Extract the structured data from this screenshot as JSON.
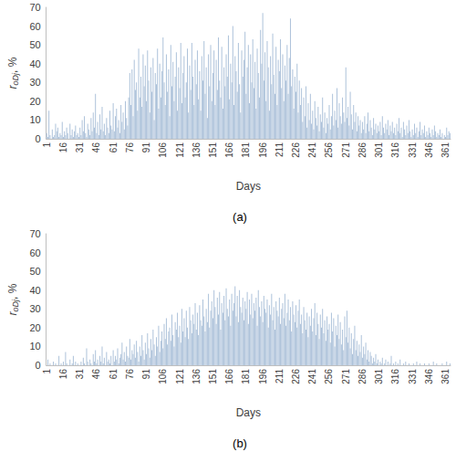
{
  "chart_data": [
    {
      "type": "bar",
      "title": "(a)",
      "xlabel": "Days",
      "ylabel": "roDj, %",
      "color": "#adc2da",
      "grid": false,
      "ylim": [
        0,
        70
      ],
      "yticks": [
        0,
        10,
        20,
        30,
        40,
        50,
        60,
        70
      ],
      "categories": [
        "1",
        null,
        null,
        null,
        null,
        null,
        null,
        null,
        null,
        null,
        null,
        null,
        null,
        null,
        null,
        "16",
        null,
        null,
        null,
        null,
        null,
        null,
        null,
        null,
        null,
        null,
        null,
        null,
        null,
        null,
        "31",
        null,
        null,
        null,
        null,
        null,
        null,
        null,
        null,
        null,
        null,
        null,
        null,
        null,
        null,
        "46",
        null,
        null,
        null,
        null,
        null,
        null,
        null,
        null,
        null,
        null,
        null,
        null,
        null,
        null,
        "61",
        null,
        null,
        null,
        null,
        null,
        null,
        null,
        null,
        null,
        null,
        null,
        null,
        null,
        null,
        "76",
        null,
        null,
        null,
        null,
        null,
        null,
        null,
        null,
        null,
        null,
        null,
        null,
        null,
        null,
        "91",
        null,
        null,
        null,
        null,
        null,
        null,
        null,
        null,
        null,
        null,
        null,
        null,
        null,
        null,
        "106",
        null,
        null,
        null,
        null,
        null,
        null,
        null,
        null,
        null,
        null,
        null,
        null,
        null,
        null,
        "121",
        null,
        null,
        null,
        null,
        null,
        null,
        null,
        null,
        null,
        null,
        null,
        null,
        null,
        null,
        "136",
        null,
        null,
        null,
        null,
        null,
        null,
        null,
        null,
        null,
        null,
        null,
        null,
        null,
        null,
        "151",
        null,
        null,
        null,
        null,
        null,
        null,
        null,
        null,
        null,
        null,
        null,
        null,
        null,
        null,
        "166",
        null,
        null,
        null,
        null,
        null,
        null,
        null,
        null,
        null,
        null,
        null,
        null,
        null,
        null,
        "181",
        null,
        null,
        null,
        null,
        null,
        null,
        null,
        null,
        null,
        null,
        null,
        null,
        null,
        null,
        "196",
        null,
        null,
        null,
        null,
        null,
        null,
        null,
        null,
        null,
        null,
        null,
        null,
        null,
        null,
        "211",
        null,
        null,
        null,
        null,
        null,
        null,
        null,
        null,
        null,
        null,
        null,
        null,
        null,
        null,
        "226",
        null,
        null,
        null,
        null,
        null,
        null,
        null,
        null,
        null,
        null,
        null,
        null,
        null,
        null,
        "241",
        null,
        null,
        null,
        null,
        null,
        null,
        null,
        null,
        null,
        null,
        null,
        null,
        null,
        null,
        "256",
        null,
        null,
        null,
        null,
        null,
        null,
        null,
        null,
        null,
        null,
        null,
        null,
        null,
        null,
        "271",
        null,
        null,
        null,
        null,
        null,
        null,
        null,
        null,
        null,
        null,
        null,
        null,
        null,
        null,
        "286",
        null,
        null,
        null,
        null,
        null,
        null,
        null,
        null,
        null,
        null,
        null,
        null,
        null,
        null,
        "301",
        null,
        null,
        null,
        null,
        null,
        null,
        null,
        null,
        null,
        null,
        null,
        null,
        null,
        null,
        "316",
        null,
        null,
        null,
        null,
        null,
        null,
        null,
        null,
        null,
        null,
        null,
        null,
        null,
        null,
        "331",
        null,
        null,
        null,
        null,
        null,
        null,
        null,
        null,
        null,
        null,
        null,
        null,
        null,
        null,
        "346",
        null,
        null,
        null,
        null,
        null,
        null,
        null,
        null,
        null,
        null,
        null,
        null,
        null,
        null,
        "361",
        null,
        null,
        null,
        null
      ],
      "values": [
        3,
        1,
        15,
        2,
        0,
        5,
        1,
        2,
        8,
        4,
        6,
        1,
        3,
        2,
        9,
        1,
        4,
        2,
        6,
        3,
        0,
        8,
        2,
        5,
        1,
        4,
        7,
        2,
        3,
        1,
        6,
        2,
        10,
        4,
        12,
        3,
        1,
        8,
        5,
        2,
        11,
        4,
        14,
        6,
        24,
        3,
        9,
        2,
        13,
        5,
        17,
        4,
        8,
        2,
        11,
        6,
        3,
        15,
        7,
        5,
        19,
        4,
        12,
        16,
        6,
        10,
        3,
        18,
        9,
        14,
        5,
        20,
        11,
        7,
        22,
        35,
        18,
        37,
        12,
        42,
        26,
        30,
        15,
        48,
        22,
        33,
        17,
        45,
        28,
        39,
        20,
        47,
        31,
        14,
        38,
        25,
        43,
        10,
        35,
        29,
        48,
        16,
        40,
        22,
        36,
        54,
        30,
        18,
        45,
        25,
        37,
        12,
        50,
        28,
        41,
        20,
        33,
        46,
        15,
        38,
        27,
        51,
        19,
        35,
        44,
        22,
        30,
        48,
        14,
        39,
        26,
        51,
        33,
        18,
        42,
        29,
        47,
        21,
        36,
        15,
        44,
        31,
        52,
        24,
        38,
        11,
        45,
        28,
        50,
        20,
        35,
        47,
        18,
        42,
        26,
        54,
        31,
        22,
        49,
        16,
        38,
        28,
        45,
        33,
        55,
        21,
        40,
        30,
        60,
        18,
        44,
        36,
        25,
        51,
        29,
        14,
        47,
        33,
        42,
        57,
        24,
        38,
        50,
        19,
        45,
        30,
        53,
        27,
        41,
        16,
        48,
        35,
        22,
        58,
        40,
        67,
        31,
        46,
        20,
        52,
        38,
        15,
        44,
        29,
        56,
        34,
        24,
        49,
        18,
        42,
        36,
        53,
        27,
        45,
        20,
        39,
        31,
        50,
        24,
        43,
        64,
        28,
        37,
        16,
        33,
        25,
        40,
        14,
        31,
        18,
        27,
        9,
        22,
        12,
        28,
        6,
        19,
        10,
        24,
        8,
        15,
        5,
        20,
        11,
        7,
        17,
        4,
        13,
        9,
        22,
        6,
        14,
        3,
        11,
        8,
        18,
        5,
        12,
        24,
        7,
        15,
        10,
        27,
        6,
        19,
        12,
        8,
        22,
        14,
        9,
        38,
        11,
        17,
        7,
        25,
        13,
        5,
        18,
        9,
        14,
        4,
        12,
        7,
        10,
        3,
        9,
        5,
        12,
        3,
        8,
        14,
        4,
        10,
        6,
        2,
        11,
        5,
        8,
        3,
        7,
        4,
        9,
        2,
        12,
        6,
        3,
        8,
        5,
        10,
        2,
        7,
        4,
        9,
        3,
        6,
        2,
        8,
        4,
        11,
        3,
        6,
        1,
        9,
        5,
        2,
        7,
        3,
        10,
        4,
        1,
        5,
        2,
        8,
        3,
        6,
        1,
        4,
        9,
        2,
        5,
        3,
        7,
        1,
        4,
        2,
        6,
        3,
        1,
        5,
        2,
        7,
        4,
        1,
        3,
        2,
        5,
        1,
        3,
        0,
        2,
        1,
        6,
        2,
        4,
        3
      ]
    },
    {
      "type": "bar",
      "title": "(b)",
      "xlabel": "Days",
      "ylabel": "roDj, %",
      "color": "#adc2da",
      "grid": false,
      "ylim": [
        0,
        70
      ],
      "yticks": [
        0,
        10,
        20,
        30,
        40,
        50,
        60,
        70
      ],
      "categories": [
        "1",
        null,
        null,
        null,
        null,
        null,
        null,
        null,
        null,
        null,
        null,
        null,
        null,
        null,
        null,
        "16",
        null,
        null,
        null,
        null,
        null,
        null,
        null,
        null,
        null,
        null,
        null,
        null,
        null,
        null,
        "31",
        null,
        null,
        null,
        null,
        null,
        null,
        null,
        null,
        null,
        null,
        null,
        null,
        null,
        null,
        "46",
        null,
        null,
        null,
        null,
        null,
        null,
        null,
        null,
        null,
        null,
        null,
        null,
        null,
        null,
        "61",
        null,
        null,
        null,
        null,
        null,
        null,
        null,
        null,
        null,
        null,
        null,
        null,
        null,
        null,
        "76",
        null,
        null,
        null,
        null,
        null,
        null,
        null,
        null,
        null,
        null,
        null,
        null,
        null,
        null,
        "91",
        null,
        null,
        null,
        null,
        null,
        null,
        null,
        null,
        null,
        null,
        null,
        null,
        null,
        null,
        "106",
        null,
        null,
        null,
        null,
        null,
        null,
        null,
        null,
        null,
        null,
        null,
        null,
        null,
        null,
        "121",
        null,
        null,
        null,
        null,
        null,
        null,
        null,
        null,
        null,
        null,
        null,
        null,
        null,
        null,
        "136",
        null,
        null,
        null,
        null,
        null,
        null,
        null,
        null,
        null,
        null,
        null,
        null,
        null,
        null,
        "151",
        null,
        null,
        null,
        null,
        null,
        null,
        null,
        null,
        null,
        null,
        null,
        null,
        null,
        null,
        "166",
        null,
        null,
        null,
        null,
        null,
        null,
        null,
        null,
        null,
        null,
        null,
        null,
        null,
        null,
        "181",
        null,
        null,
        null,
        null,
        null,
        null,
        null,
        null,
        null,
        null,
        null,
        null,
        null,
        null,
        "196",
        null,
        null,
        null,
        null,
        null,
        null,
        null,
        null,
        null,
        null,
        null,
        null,
        null,
        null,
        "211",
        null,
        null,
        null,
        null,
        null,
        null,
        null,
        null,
        null,
        null,
        null,
        null,
        null,
        null,
        "226",
        null,
        null,
        null,
        null,
        null,
        null,
        null,
        null,
        null,
        null,
        null,
        null,
        null,
        null,
        "241",
        null,
        null,
        null,
        null,
        null,
        null,
        null,
        null,
        null,
        null,
        null,
        null,
        null,
        null,
        "256",
        null,
        null,
        null,
        null,
        null,
        null,
        null,
        null,
        null,
        null,
        null,
        null,
        null,
        null,
        "271",
        null,
        null,
        null,
        null,
        null,
        null,
        null,
        null,
        null,
        null,
        null,
        null,
        null,
        null,
        "286",
        null,
        null,
        null,
        null,
        null,
        null,
        null,
        null,
        null,
        null,
        null,
        null,
        null,
        null,
        "301",
        null,
        null,
        null,
        null,
        null,
        null,
        null,
        null,
        null,
        null,
        null,
        null,
        null,
        null,
        "316",
        null,
        null,
        null,
        null,
        null,
        null,
        null,
        null,
        null,
        null,
        null,
        null,
        null,
        null,
        "331",
        null,
        null,
        null,
        null,
        null,
        null,
        null,
        null,
        null,
        null,
        null,
        null,
        null,
        null,
        "346",
        null,
        null,
        null,
        null,
        null,
        null,
        null,
        null,
        null,
        null,
        null,
        null,
        null,
        null,
        "361",
        null,
        null,
        null,
        null
      ],
      "values": [
        0,
        3,
        0,
        1,
        0,
        0,
        2,
        0,
        1,
        0,
        0,
        5,
        0,
        1,
        0,
        2,
        0,
        7,
        1,
        0,
        0,
        3,
        0,
        1,
        5,
        0,
        2,
        0,
        1,
        0,
        0,
        2,
        0,
        4,
        1,
        0,
        9,
        2,
        0,
        3,
        1,
        0,
        6,
        2,
        8,
        1,
        3,
        0,
        5,
        2,
        10,
        1,
        4,
        0,
        7,
        2,
        3,
        1,
        5,
        0,
        8,
        2,
        5,
        3,
        9,
        1,
        4,
        6,
        12,
        3,
        7,
        2,
        10,
        5,
        4,
        14,
        3,
        8,
        6,
        11,
        4,
        13,
        7,
        2,
        10,
        5,
        16,
        8,
        3,
        12,
        6,
        17,
        9,
        4,
        14,
        8,
        19,
        11,
        5,
        15,
        10,
        21,
        7,
        13,
        18,
        9,
        22,
        14,
        25,
        11,
        18,
        20,
        13,
        27,
        16,
        10,
        23,
        19,
        28,
        15,
        21,
        12,
        30,
        18,
        25,
        15,
        29,
        20,
        14,
        31,
        24,
        17,
        27,
        22,
        33,
        19,
        28,
        16,
        32,
        24,
        21,
        35,
        26,
        18,
        30,
        23,
        38,
        20,
        29,
        34,
        25,
        40,
        31,
        22,
        36,
        27,
        39,
        19,
        33,
        28,
        37,
        24,
        41,
        30,
        26,
        35,
        21,
        38,
        29,
        33,
        42,
        26,
        37,
        23,
        40,
        31,
        28,
        36,
        24,
        34,
        30,
        39,
        22,
        35,
        27,
        38,
        25,
        33,
        29,
        36,
        21,
        40,
        31,
        26,
        34,
        23,
        37,
        30,
        28,
        35,
        20,
        32,
        27,
        38,
        24,
        31,
        19,
        34,
        29,
        26,
        36,
        22,
        30,
        33,
        25,
        38,
        21,
        28,
        35,
        24,
        31,
        18,
        34,
        27,
        23,
        32,
        20,
        29,
        35,
        22,
        27,
        17,
        31,
        24,
        19,
        28,
        15,
        26,
        21,
        30,
        18,
        25,
        33,
        16,
        28,
        22,
        14,
        27,
        20,
        30,
        17,
        24,
        13,
        26,
        19,
        22,
        12,
        28,
        18,
        25,
        10,
        21,
        16,
        27,
        14,
        23,
        11,
        19,
        8,
        26,
        15,
        29,
        12,
        20,
        9,
        17,
        6,
        14,
        21,
        8,
        13,
        5,
        11,
        7,
        16,
        4,
        10,
        6,
        12,
        3,
        8,
        2,
        7,
        5,
        1,
        4,
        2,
        6,
        1,
        3,
        0,
        2,
        1,
        4,
        0,
        1,
        3,
        0,
        2,
        0,
        1,
        5,
        0,
        1,
        0,
        2,
        0,
        1,
        0,
        3,
        0,
        0,
        1,
        0,
        2,
        0,
        0,
        1,
        0,
        0,
        0,
        1,
        0,
        0,
        2,
        0,
        0,
        1,
        0,
        0,
        0,
        1,
        0,
        0,
        0,
        1,
        0,
        0,
        0,
        2,
        0,
        0,
        1,
        0,
        0,
        0,
        0,
        1,
        0,
        0,
        0,
        2,
        0,
        0,
        1
      ]
    }
  ]
}
